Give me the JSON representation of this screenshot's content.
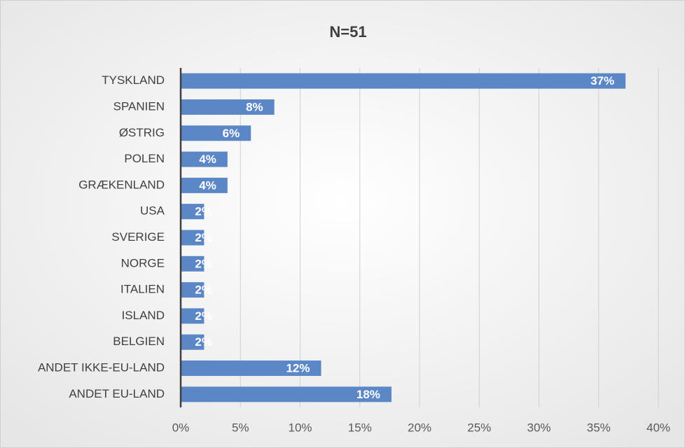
{
  "chart_data": {
    "type": "barh",
    "title": "N=51",
    "categories": [
      "TYSKLAND",
      "SPANIEN",
      "ØSTRIG",
      "POLEN",
      "GRÆKENLAND",
      "USA",
      "SVERIGE",
      "NORGE",
      "ITALIEN",
      "ISLAND",
      "BELGIEN",
      "ANDET IKKE-EU-LAND",
      "ANDET EU-LAND"
    ],
    "values": [
      37.25,
      7.84,
      5.88,
      3.92,
      3.92,
      1.96,
      1.96,
      1.96,
      1.96,
      1.96,
      1.96,
      11.76,
      17.65
    ],
    "value_labels": [
      "37%",
      "8%",
      "6%",
      "4%",
      "4%",
      "2%",
      "2%",
      "2%",
      "2%",
      "2%",
      "2%",
      "12%",
      "18%"
    ],
    "color": "#5b87c6",
    "xlim": [
      0,
      40
    ],
    "xticks": [
      {
        "value": 0,
        "label": "0%"
      },
      {
        "value": 5,
        "label": "5%"
      },
      {
        "value": 10,
        "label": "10%"
      },
      {
        "value": 15,
        "label": "15%"
      },
      {
        "value": 20,
        "label": "20%"
      },
      {
        "value": 25,
        "label": "25%"
      },
      {
        "value": 30,
        "label": "30%"
      },
      {
        "value": 35,
        "label": "35%"
      },
      {
        "value": 40,
        "label": "40%"
      }
    ],
    "grid": true
  }
}
